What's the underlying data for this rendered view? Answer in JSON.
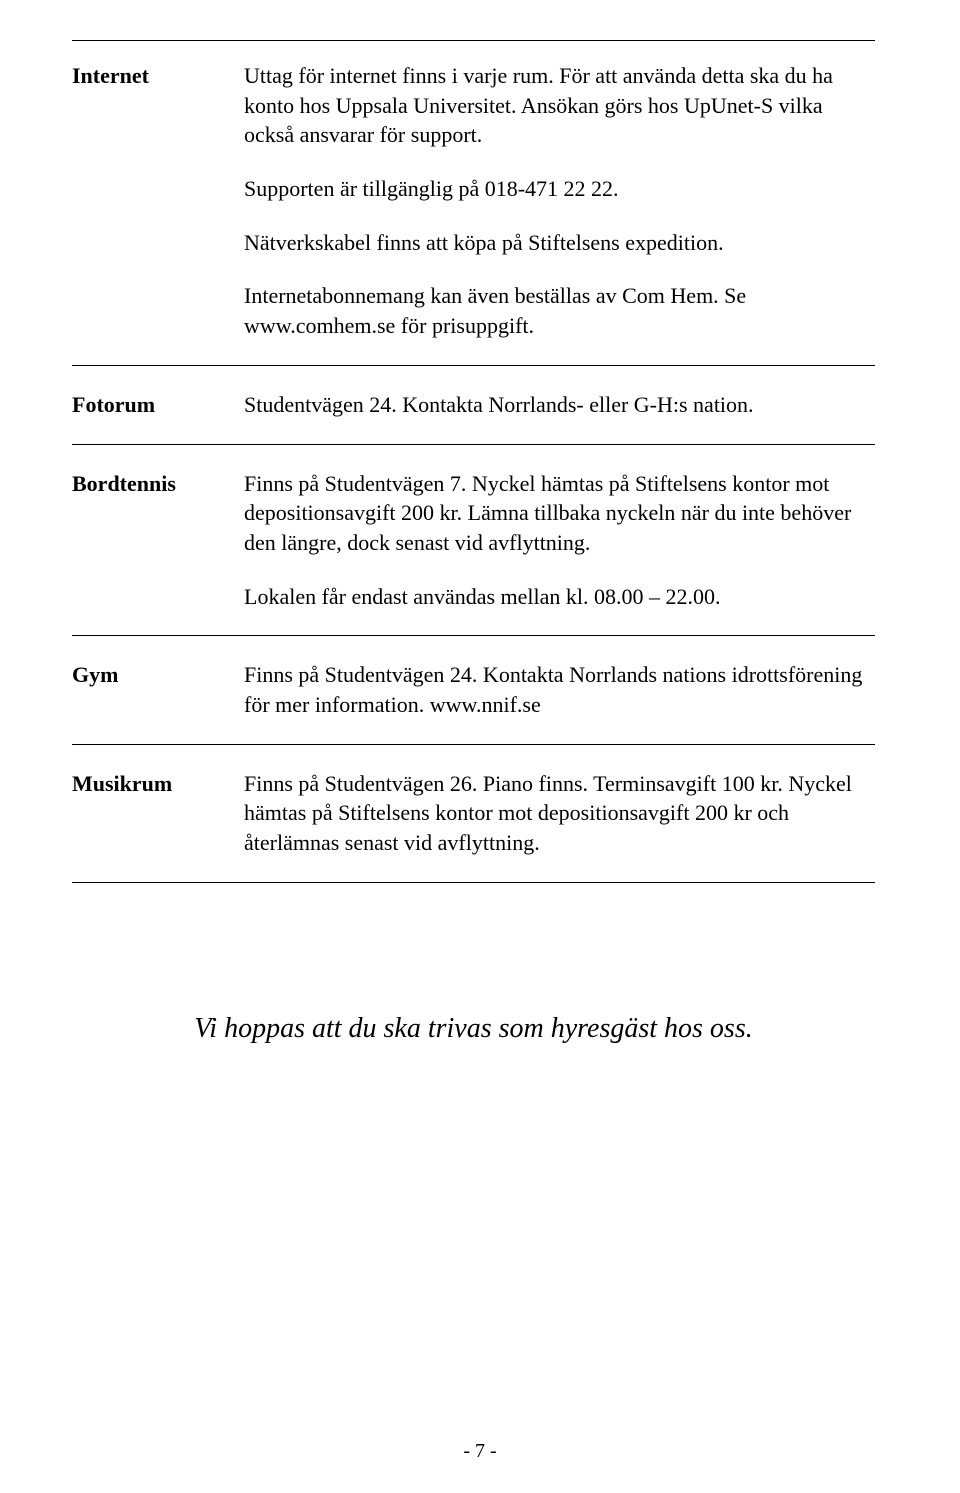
{
  "sections": [
    {
      "label": "Internet",
      "paragraphs": [
        "Uttag för internet finns i varje rum. För att använda detta ska du ha konto hos Uppsala Universitet. Ansökan görs hos UpUnet-S vilka också ansvarar för support.",
        "Supporten är tillgänglig på 018-471 22 22.",
        "Nätverkskabel finns att köpa på Stiftelsens expedition.",
        "Internetabonnemang kan även beställas av Com Hem. Se www.comhem.se för prisuppgift."
      ]
    },
    {
      "label": "Fotorum",
      "paragraphs": [
        "Studentvägen 24. Kontakta Norrlands- eller G-H:s nation."
      ]
    },
    {
      "label": "Bordtennis",
      "paragraphs": [
        "Finns på Studentvägen 7. Nyckel hämtas på Stiftelsens kontor mot depositionsavgift 200 kr. Lämna tillbaka nyckeln när du inte behöver den längre, dock senast vid avflyttning.",
        "Lokalen får endast användas mellan kl. 08.00 – 22.00."
      ]
    },
    {
      "label": "Gym",
      "paragraphs": [
        "Finns på Studentvägen 24. Kontakta Norrlands nations idrottsförening för mer information. www.nnif.se"
      ]
    },
    {
      "label": "Musikrum",
      "paragraphs": [
        "Finns på Studentvägen 26. Piano finns. Terminsavgift 100 kr. Nyckel hämtas på Stiftelsens kontor mot depositionsavgift 200 kr och återlämnas senast vid avflyttning."
      ]
    }
  ],
  "closing_text": "Vi hoppas att du ska trivas som hyresgäst hos oss.",
  "page_number": "- 7 -"
}
